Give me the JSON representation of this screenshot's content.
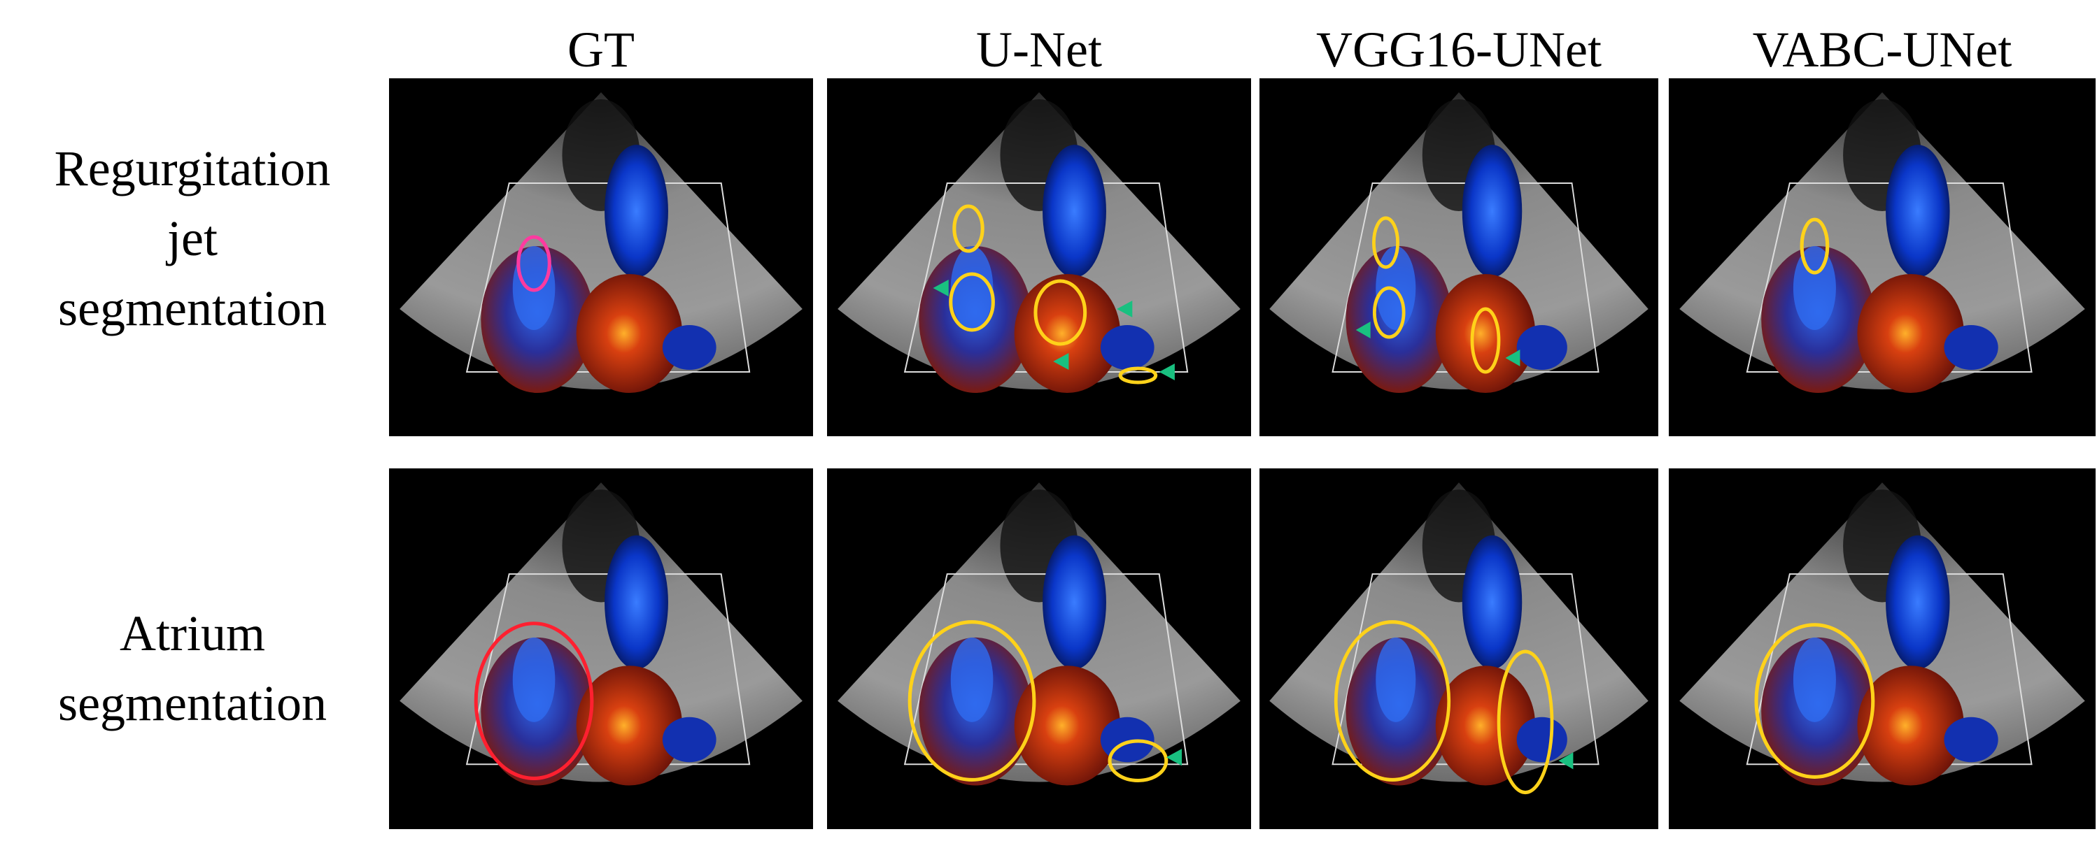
{
  "figure": {
    "column_headers": [
      "GT",
      "U-Net",
      "VGG16-UNet",
      "VABC-UNet"
    ],
    "row_labels": [
      [
        "Regurgitation",
        "jet",
        "segmentation"
      ],
      [
        "Atrium",
        "segmentation"
      ]
    ]
  }
}
